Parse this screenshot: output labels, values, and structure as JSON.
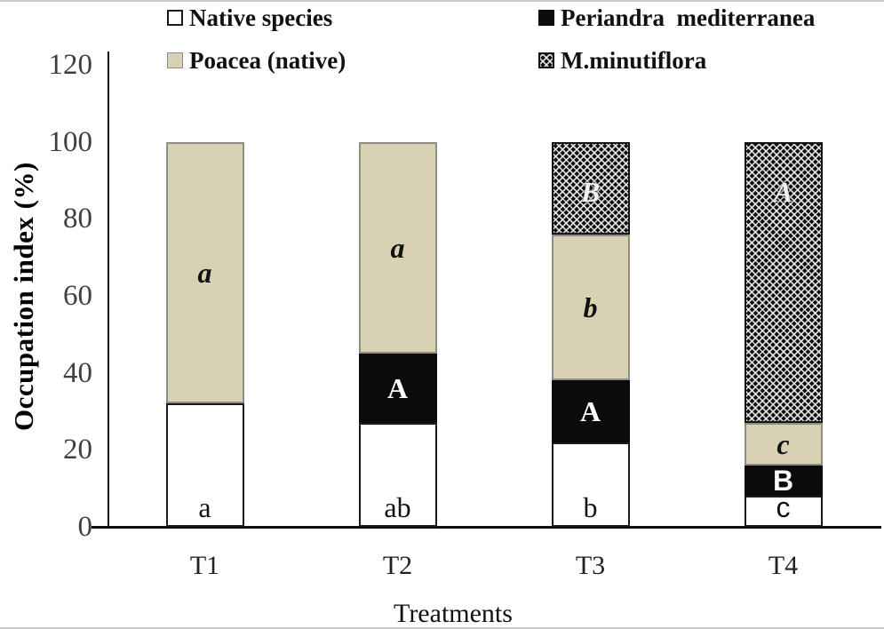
{
  "chart_data": {
    "type": "bar",
    "stacked": true,
    "title": "",
    "xlabel": "Treatments",
    "ylabel": "Occupation index (%)",
    "ylim": [
      0,
      120
    ],
    "yticks": [
      0,
      20,
      40,
      60,
      80,
      100,
      120
    ],
    "grid": false,
    "legend_position": "top",
    "categories": [
      "T1",
      "T2",
      "T3",
      "T4"
    ],
    "series": [
      {
        "name": "Native species",
        "fill": "white",
        "values": [
          32,
          27,
          22,
          8
        ],
        "labels": [
          "a",
          "ab",
          "b",
          "c"
        ]
      },
      {
        "name": "Periandra  mediterranea",
        "fill": "black",
        "values": [
          0,
          18,
          16,
          8
        ],
        "labels": [
          "",
          "A",
          "A",
          "B"
        ]
      },
      {
        "name": "Poacea (native)",
        "fill": "tan",
        "values": [
          68,
          55,
          38,
          11
        ],
        "labels": [
          "a",
          "a",
          "b",
          "c"
        ]
      },
      {
        "name": "M.minutiflora",
        "fill": "hatch",
        "values": [
          0,
          0,
          24,
          73
        ],
        "labels": [
          "",
          "",
          "B",
          "A"
        ]
      }
    ],
    "sans_labels": [
      [
        0,
        3
      ],
      [
        1,
        3
      ]
    ],
    "colors": {
      "native": "#ffffff",
      "periandra": "#0b0b0b",
      "poacea": "#d8d1b4",
      "hatch_background": "#0e0e0e",
      "hatch_lines": "#f0f0f0",
      "axis": "#0e0e0e",
      "tick_text": "#3f3f3f"
    }
  }
}
